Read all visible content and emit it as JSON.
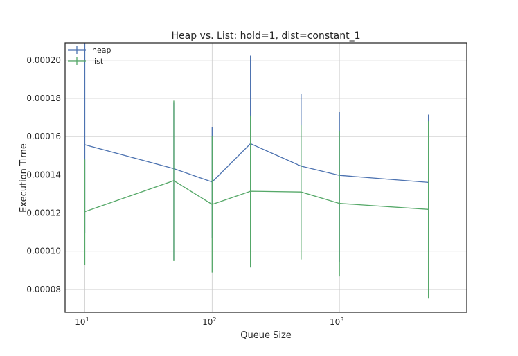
{
  "chart_data": {
    "type": "line",
    "title": "Heap vs. List: hold=1, dist=constant_1",
    "xlabel": "Queue Size",
    "ylabel": "Execution Time",
    "xscale": "log",
    "xlim": [
      7,
      10000
    ],
    "ylim": [
      6.8e-05,
      0.000209
    ],
    "x_ticks": [
      {
        "value": 10,
        "base": "10",
        "exp": "1"
      },
      {
        "value": 100,
        "base": "10",
        "exp": "2"
      },
      {
        "value": 1000,
        "base": "10",
        "exp": "3"
      }
    ],
    "y_ticks": [
      {
        "value": 8e-05,
        "label": "0.00008"
      },
      {
        "value": 0.0001,
        "label": "0.00010"
      },
      {
        "value": 0.00012,
        "label": "0.00012"
      },
      {
        "value": 0.00014,
        "label": "0.00014"
      },
      {
        "value": 0.00016,
        "label": "0.00016"
      },
      {
        "value": 0.00018,
        "label": "0.00018"
      },
      {
        "value": 0.0002,
        "label": "0.00020"
      }
    ],
    "grid": true,
    "legend_position": "top-left",
    "x": [
      10,
      50,
      100,
      200,
      500,
      1000,
      5000
    ],
    "series": [
      {
        "name": "heap",
        "color": "#4c72b0",
        "values": [
          0.0001557,
          0.0001432,
          0.0001362,
          0.0001563,
          0.0001445,
          0.0001397,
          0.000136
        ],
        "err_low": [
          0.0001095,
          9.55e-05,
          0.000107,
          9.15e-05,
          0.000106,
          9.45e-05,
          0.0001
        ],
        "err_high": [
          0.000209,
          0.000178,
          0.000165,
          0.0002023,
          0.0001825,
          0.000173,
          0.0001715
        ]
      },
      {
        "name": "list",
        "color": "#55a868",
        "values": [
          0.0001207,
          0.0001369,
          0.0001245,
          0.0001314,
          0.000131,
          0.000125,
          0.0001219
        ],
        "err_low": [
          9.28e-05,
          9.48e-05,
          8.88e-05,
          9.15e-05,
          9.57e-05,
          8.68e-05,
          7.55e-05
        ],
        "err_high": [
          0.000148,
          0.0001788,
          0.00016,
          0.000171,
          0.000166,
          0.000163,
          0.000168
        ]
      }
    ]
  }
}
